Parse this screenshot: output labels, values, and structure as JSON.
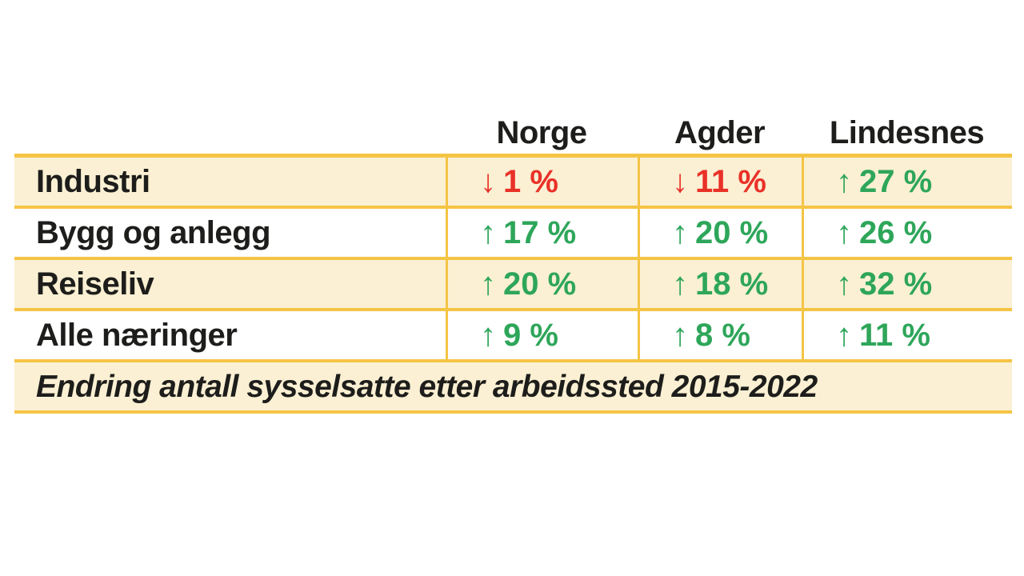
{
  "colors": {
    "background": "#FFFFFF",
    "row_cream": "#FBF0D3",
    "row_white": "#FFFFFF",
    "border_gold": "#F5C445",
    "text_black": "#1D1D1B",
    "positive_green": "#2EA65A",
    "negative_red": "#E93128"
  },
  "table": {
    "column_headers": [
      "Norge",
      "Agder",
      "Lindesnes"
    ],
    "rows": [
      {
        "label": "Industri",
        "cells": [
          {
            "arrow": "↓",
            "value": "1 %",
            "trend": "negative"
          },
          {
            "arrow": "↓",
            "value": "11 %",
            "trend": "negative"
          },
          {
            "arrow": "↑",
            "value": "27 %",
            "trend": "positive"
          }
        ]
      },
      {
        "label": "Bygg og anlegg",
        "cells": [
          {
            "arrow": "↑",
            "value": "17 %",
            "trend": "positive"
          },
          {
            "arrow": "↑",
            "value": "20 %",
            "trend": "positive"
          },
          {
            "arrow": "↑",
            "value": "26 %",
            "trend": "positive"
          }
        ]
      },
      {
        "label": "Reiseliv",
        "cells": [
          {
            "arrow": "↑",
            "value": "20 %",
            "trend": "positive"
          },
          {
            "arrow": "↑",
            "value": "18 %",
            "trend": "positive"
          },
          {
            "arrow": "↑",
            "value": "32 %",
            "trend": "positive"
          }
        ]
      },
      {
        "label": "Alle næringer",
        "cells": [
          {
            "arrow": "↑",
            "value": "9 %",
            "trend": "positive"
          },
          {
            "arrow": "↑",
            "value": "8 %",
            "trend": "positive"
          },
          {
            "arrow": "↑",
            "value": "11 %",
            "trend": "positive"
          }
        ]
      }
    ],
    "caption": "Endring antall sysselsatte etter arbeidssted 2015-2022"
  },
  "chart_data": {
    "type": "table",
    "title": "Endring antall sysselsatte etter arbeidssted 2015-2022",
    "categories": [
      "Industri",
      "Bygg og anlegg",
      "Reiseliv",
      "Alle næringer"
    ],
    "series": [
      {
        "name": "Norge",
        "values": [
          -1,
          17,
          20,
          9
        ]
      },
      {
        "name": "Agder",
        "values": [
          -11,
          20,
          18,
          8
        ]
      },
      {
        "name": "Lindesnes",
        "values": [
          27,
          26,
          32,
          11
        ]
      }
    ],
    "unit": "percent change in employed persons"
  }
}
